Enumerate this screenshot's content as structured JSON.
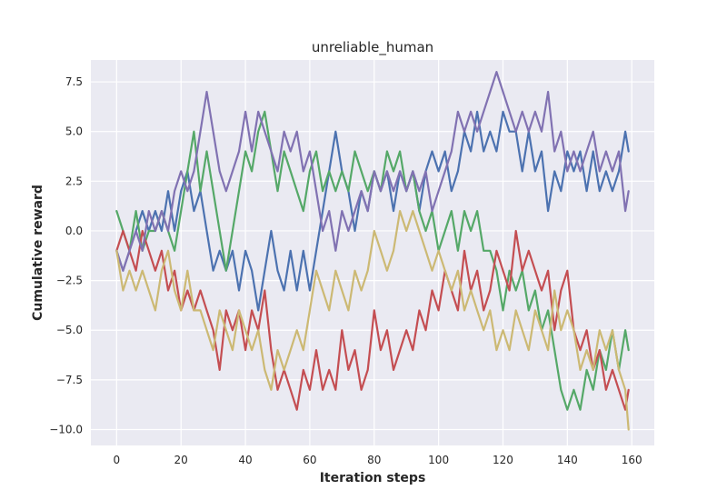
{
  "chart_data": {
    "type": "line",
    "title": "unreliable_human",
    "xlabel": "Iteration steps",
    "ylabel": "Cumulative reward",
    "xlim": [
      -8,
      167
    ],
    "ylim": [
      -10.8,
      8.6
    ],
    "xticks": [
      0,
      20,
      40,
      60,
      80,
      100,
      120,
      140,
      160
    ],
    "xtick_labels": [
      "0",
      "20",
      "40",
      "60",
      "80",
      "100",
      "120",
      "140",
      "160"
    ],
    "yticks": [
      7.5,
      5.0,
      2.5,
      0.0,
      -2.5,
      -5.0,
      -7.5,
      -10.0
    ],
    "ytick_labels": [
      "7.5",
      "5.0",
      "2.5",
      "0.0",
      "−2.5",
      "−5.0",
      "−7.5",
      "−10.0"
    ],
    "grid": true,
    "series": [
      {
        "color": "#4C72B0",
        "x": [
          0,
          2,
          4,
          6,
          8,
          10,
          12,
          14,
          16,
          18,
          20,
          22,
          24,
          26,
          28,
          30,
          32,
          34,
          36,
          38,
          40,
          42,
          44,
          46,
          48,
          50,
          52,
          54,
          56,
          58,
          60,
          62,
          64,
          66,
          68,
          70,
          72,
          74,
          76,
          78,
          80,
          82,
          84,
          86,
          88,
          90,
          92,
          94,
          96,
          98,
          100,
          102,
          104,
          106,
          108,
          110,
          112,
          114,
          116,
          118,
          120,
          122,
          124,
          126,
          128,
          130,
          132,
          134,
          136,
          138,
          140,
          142,
          144,
          146,
          148,
          150,
          152,
          154,
          156,
          158,
          159
        ],
        "y": [
          -1,
          -2,
          -1,
          0,
          1,
          0,
          1,
          0,
          2,
          0,
          2,
          3,
          1,
          2,
          0,
          -2,
          -1,
          -2,
          -1,
          -3,
          -1,
          -2,
          -4,
          -2,
          0,
          -2,
          -3,
          -1,
          -3,
          -1,
          -3,
          -1,
          1,
          3,
          5,
          3,
          2,
          0,
          2,
          1,
          3,
          2,
          3,
          1,
          3,
          2,
          3,
          1,
          3,
          4,
          3,
          4,
          2,
          3,
          5,
          4,
          6,
          4,
          5,
          4,
          6,
          5,
          5,
          3,
          5,
          3,
          4,
          1,
          3,
          2,
          4,
          3,
          4,
          2,
          4,
          2,
          3,
          2,
          3,
          5,
          4
        ]
      },
      {
        "color": "#55A868",
        "x": [
          0,
          2,
          4,
          6,
          8,
          10,
          12,
          14,
          16,
          18,
          20,
          22,
          24,
          26,
          28,
          30,
          32,
          34,
          36,
          38,
          40,
          42,
          44,
          46,
          48,
          50,
          52,
          54,
          56,
          58,
          60,
          62,
          64,
          66,
          68,
          70,
          72,
          74,
          76,
          78,
          80,
          82,
          84,
          86,
          88,
          90,
          92,
          94,
          96,
          98,
          100,
          102,
          104,
          106,
          108,
          110,
          112,
          114,
          116,
          118,
          120,
          122,
          124,
          126,
          128,
          130,
          132,
          134,
          136,
          138,
          140,
          142,
          144,
          146,
          148,
          150,
          152,
          154,
          156,
          158,
          159
        ],
        "y": [
          1,
          0,
          -1,
          1,
          -1,
          0,
          0,
          1,
          0,
          -1,
          1,
          3,
          5,
          2,
          4,
          2,
          0,
          -2,
          0,
          2,
          4,
          3,
          5,
          6,
          4,
          2,
          4,
          3,
          2,
          1,
          3,
          4,
          2,
          3,
          2,
          3,
          2,
          4,
          3,
          2,
          3,
          2,
          4,
          3,
          4,
          2,
          3,
          1,
          0,
          1,
          -1,
          0,
          1,
          -1,
          1,
          0,
          1,
          -1,
          -1,
          -2,
          -4,
          -2,
          -3,
          -2,
          -4,
          -3,
          -5,
          -4,
          -6,
          -8,
          -9,
          -8,
          -9,
          -7,
          -8,
          -6,
          -7,
          -5,
          -7,
          -5,
          -6
        ]
      },
      {
        "color": "#C44E52",
        "x": [
          0,
          2,
          4,
          6,
          8,
          10,
          12,
          14,
          16,
          18,
          20,
          22,
          24,
          26,
          28,
          30,
          32,
          34,
          36,
          38,
          40,
          42,
          44,
          46,
          48,
          50,
          52,
          54,
          56,
          58,
          60,
          62,
          64,
          66,
          68,
          70,
          72,
          74,
          76,
          78,
          80,
          82,
          84,
          86,
          88,
          90,
          92,
          94,
          96,
          98,
          100,
          102,
          104,
          106,
          108,
          110,
          112,
          114,
          116,
          118,
          120,
          122,
          124,
          126,
          128,
          130,
          132,
          134,
          136,
          138,
          140,
          142,
          144,
          146,
          148,
          150,
          152,
          154,
          156,
          158,
          159
        ],
        "y": [
          -1,
          0,
          -1,
          -2,
          0,
          -1,
          -2,
          -1,
          -3,
          -2,
          -4,
          -3,
          -4,
          -3,
          -4,
          -5,
          -7,
          -4,
          -5,
          -4,
          -6,
          -4,
          -5,
          -3,
          -6,
          -8,
          -7,
          -8,
          -9,
          -7,
          -8,
          -6,
          -8,
          -7,
          -8,
          -5,
          -7,
          -6,
          -8,
          -7,
          -4,
          -6,
          -5,
          -7,
          -6,
          -5,
          -6,
          -4,
          -5,
          -3,
          -4,
          -2,
          -3,
          -4,
          -1,
          -3,
          -2,
          -4,
          -3,
          -1,
          -2,
          -3,
          0,
          -2,
          -1,
          -2,
          -3,
          -2,
          -5,
          -3,
          -2,
          -5,
          -6,
          -5,
          -7,
          -6,
          -8,
          -7,
          -8,
          -9,
          -8
        ]
      },
      {
        "color": "#8172B2",
        "x": [
          0,
          2,
          4,
          6,
          8,
          10,
          12,
          14,
          16,
          18,
          20,
          22,
          24,
          26,
          28,
          30,
          32,
          34,
          36,
          38,
          40,
          42,
          44,
          46,
          48,
          50,
          52,
          54,
          56,
          58,
          60,
          62,
          64,
          66,
          68,
          70,
          72,
          74,
          76,
          78,
          80,
          82,
          84,
          86,
          88,
          90,
          92,
          94,
          96,
          98,
          100,
          102,
          104,
          106,
          108,
          110,
          112,
          114,
          116,
          118,
          120,
          122,
          124,
          126,
          128,
          130,
          132,
          134,
          136,
          138,
          140,
          142,
          144,
          146,
          148,
          150,
          152,
          154,
          156,
          158,
          159
        ],
        "y": [
          -1,
          -2,
          -1,
          0,
          -1,
          1,
          0,
          1,
          0,
          2,
          3,
          2,
          3,
          5,
          7,
          5,
          3,
          2,
          3,
          4,
          6,
          4,
          6,
          5,
          4,
          3,
          5,
          4,
          5,
          3,
          4,
          2,
          0,
          1,
          -1,
          1,
          0,
          1,
          2,
          1,
          3,
          2,
          3,
          2,
          3,
          2,
          3,
          2,
          3,
          1,
          2,
          3,
          4,
          6,
          5,
          6,
          5,
          6,
          7,
          8,
          7,
          6,
          5,
          6,
          5,
          6,
          5,
          7,
          4,
          5,
          3,
          4,
          3,
          4,
          5,
          3,
          4,
          3,
          4,
          1,
          2
        ]
      },
      {
        "color": "#CCB974",
        "x": [
          0,
          2,
          4,
          6,
          8,
          10,
          12,
          14,
          16,
          18,
          20,
          22,
          24,
          26,
          28,
          30,
          32,
          34,
          36,
          38,
          40,
          42,
          44,
          46,
          48,
          50,
          52,
          54,
          56,
          58,
          60,
          62,
          64,
          66,
          68,
          70,
          72,
          74,
          76,
          78,
          80,
          82,
          84,
          86,
          88,
          90,
          92,
          94,
          96,
          98,
          100,
          102,
          104,
          106,
          108,
          110,
          112,
          114,
          116,
          118,
          120,
          122,
          124,
          126,
          128,
          130,
          132,
          134,
          136,
          138,
          140,
          142,
          144,
          146,
          148,
          150,
          152,
          154,
          156,
          158,
          159
        ],
        "y": [
          -1,
          -3,
          -2,
          -3,
          -2,
          -3,
          -4,
          -2,
          -1,
          -3,
          -4,
          -2,
          -4,
          -4,
          -5,
          -6,
          -4,
          -5,
          -6,
          -4,
          -5,
          -6,
          -5,
          -7,
          -8,
          -6,
          -7,
          -6,
          -5,
          -6,
          -4,
          -2,
          -3,
          -4,
          -2,
          -3,
          -4,
          -2,
          -3,
          -2,
          0,
          -1,
          -2,
          -1,
          1,
          0,
          1,
          0,
          -1,
          -2,
          -1,
          -2,
          -3,
          -2,
          -4,
          -3,
          -4,
          -5,
          -4,
          -6,
          -5,
          -6,
          -4,
          -5,
          -6,
          -4,
          -5,
          -6,
          -3,
          -5,
          -4,
          -5,
          -7,
          -6,
          -7,
          -5,
          -6,
          -5,
          -7,
          -8,
          -10
        ]
      }
    ]
  }
}
